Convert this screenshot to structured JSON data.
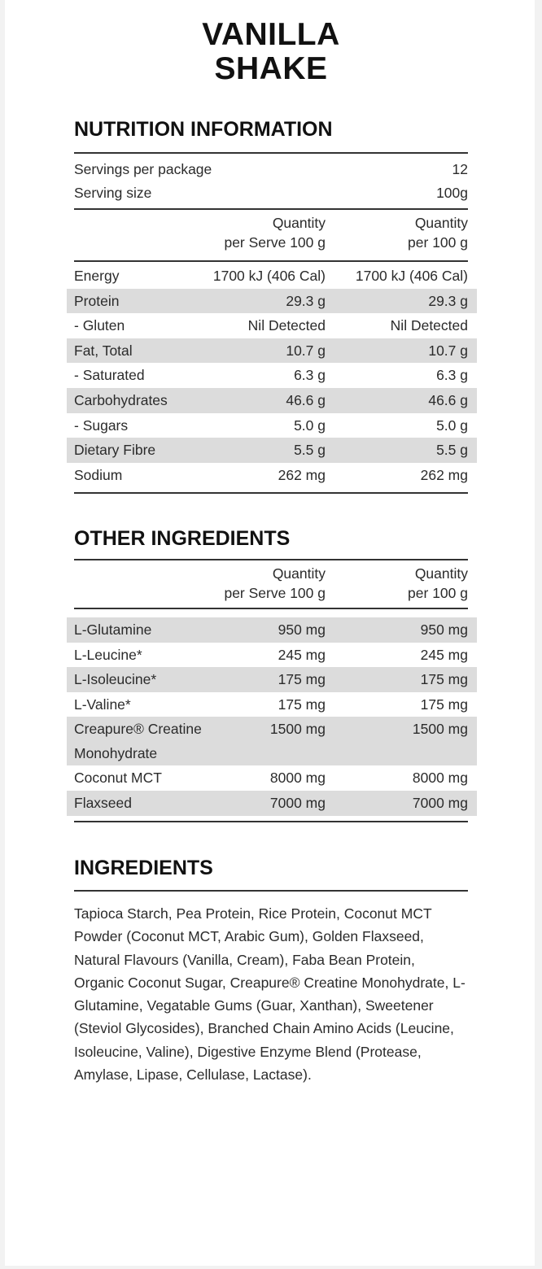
{
  "title_lines": [
    "VANILLA",
    "SHAKE"
  ],
  "nutrition": {
    "heading": "NUTRITION INFORMATION",
    "servings": [
      {
        "label": "Servings per package",
        "value": "12"
      },
      {
        "label": "Serving size",
        "value": "100g"
      }
    ],
    "col1": [
      "Quantity",
      "per Serve 100 g"
    ],
    "col2": [
      "Quantity",
      "per 100 g"
    ],
    "rows": [
      {
        "name": "Energy",
        "serve": "1700 kJ (406 Cal)",
        "per100": "1700 kJ (406 Cal)",
        "shaded": false
      },
      {
        "name": "Protein",
        "serve": "29.3 g",
        "per100": "29.3 g",
        "shaded": true
      },
      {
        "name": "- Gluten",
        "serve": "Nil Detected",
        "per100": "Nil Detected",
        "shaded": false
      },
      {
        "name": "Fat, Total",
        "serve": "10.7 g",
        "per100": "10.7 g",
        "shaded": true
      },
      {
        "name": "- Saturated",
        "serve": "6.3 g",
        "per100": "6.3 g",
        "shaded": false
      },
      {
        "name": "Carbohydrates",
        "serve": "46.6 g",
        "per100": "46.6 g",
        "shaded": true
      },
      {
        "name": "- Sugars",
        "serve": "5.0 g",
        "per100": "5.0 g",
        "shaded": false
      },
      {
        "name": "Dietary Fibre",
        "serve": "5.5 g",
        "per100": "5.5 g",
        "shaded": true
      },
      {
        "name": "Sodium",
        "serve": "262 mg",
        "per100": "262 mg",
        "shaded": false
      }
    ]
  },
  "other": {
    "heading": "OTHER INGREDIENTS",
    "col1": [
      "Quantity",
      "per Serve 100 g"
    ],
    "col2": [
      "Quantity",
      "per 100 g"
    ],
    "rows": [
      {
        "name": "L-Glutamine",
        "serve": "950 mg",
        "per100": "950 mg",
        "shaded": true
      },
      {
        "name": "L-Leucine*",
        "serve": "245 mg",
        "per100": "245 mg",
        "shaded": false
      },
      {
        "name": "L-Isoleucine*",
        "serve": "175 mg",
        "per100": "175 mg",
        "shaded": true
      },
      {
        "name": "L-Valine*",
        "serve": "175 mg",
        "per100": "175 mg",
        "shaded": false
      },
      {
        "name": "Creapure® Creatine Monohydrate",
        "serve": "1500 mg",
        "per100": "1500 mg",
        "shaded": true,
        "tall": true
      },
      {
        "name": "Coconut MCT",
        "serve": "8000 mg",
        "per100": "8000 mg",
        "shaded": false
      },
      {
        "name": "Flaxseed",
        "serve": "7000 mg",
        "per100": "7000 mg",
        "shaded": true
      }
    ]
  },
  "ingredients": {
    "heading": "INGREDIENTS",
    "text": "Tapioca Starch, Pea Protein, Rice Protein, Coconut MCT Powder (Coconut MCT, Arabic Gum), Golden Flaxseed, Natural Flavours (Vanilla, Cream), Faba Bean Protein, Organic Coconut Sugar, Creapure® Creatine Monohydrate, L-Glutamine, Vegatable Gums (Guar, Xanthan), Sweetener (Steviol Glycosides), Branched Chain Amino Acids (Leucine, Isoleucine, Valine), Digestive Enzyme Blend (Protease, Amylase, Lipase, Cellulase, Lactase)."
  }
}
